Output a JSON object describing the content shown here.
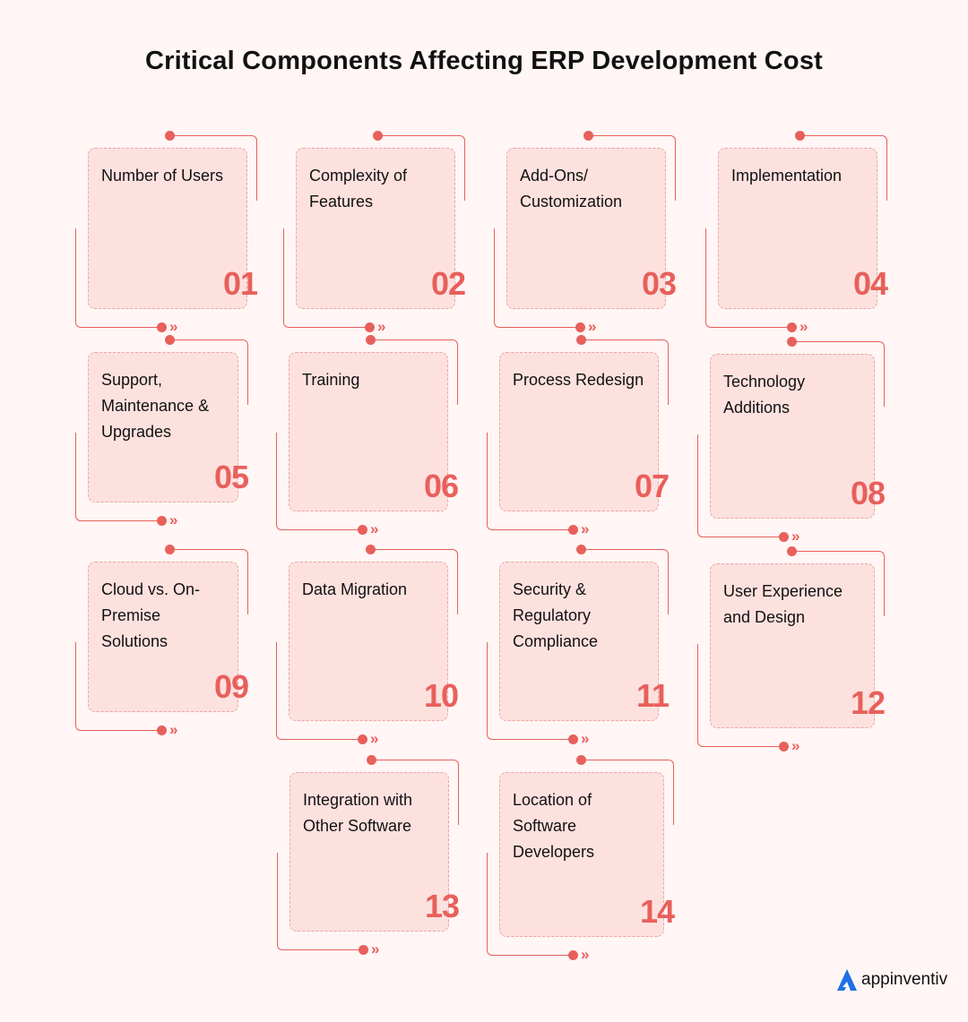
{
  "title": "Critical Components Affecting ERP Development Cost",
  "accent_color": "#e8605b",
  "card_color": "#fde1df",
  "components": [
    {
      "number": "01",
      "label": "Number of Users"
    },
    {
      "number": "02",
      "label": "Complexity of Features"
    },
    {
      "number": "03",
      "label": "Add-Ons/ Customization"
    },
    {
      "number": "04",
      "label": "Implementation"
    },
    {
      "number": "05",
      "label": "Support, Maintenance & Upgrades"
    },
    {
      "number": "06",
      "label": "Training"
    },
    {
      "number": "07",
      "label": "Process Redesign"
    },
    {
      "number": "08",
      "label": "Technology Additions"
    },
    {
      "number": "09",
      "label": "Cloud vs. On-Premise Solutions"
    },
    {
      "number": "10",
      "label": "Data Migration"
    },
    {
      "number": "11",
      "label": "Security & Regulatory Compliance"
    },
    {
      "number": "12",
      "label": "User Experience and Design"
    },
    {
      "number": "13",
      "label": "Integration with Other Software"
    },
    {
      "number": "14",
      "label": "Location of Software Developers"
    }
  ],
  "logo": {
    "text": "appinventiv",
    "icon": "appinventiv-logo-icon"
  }
}
